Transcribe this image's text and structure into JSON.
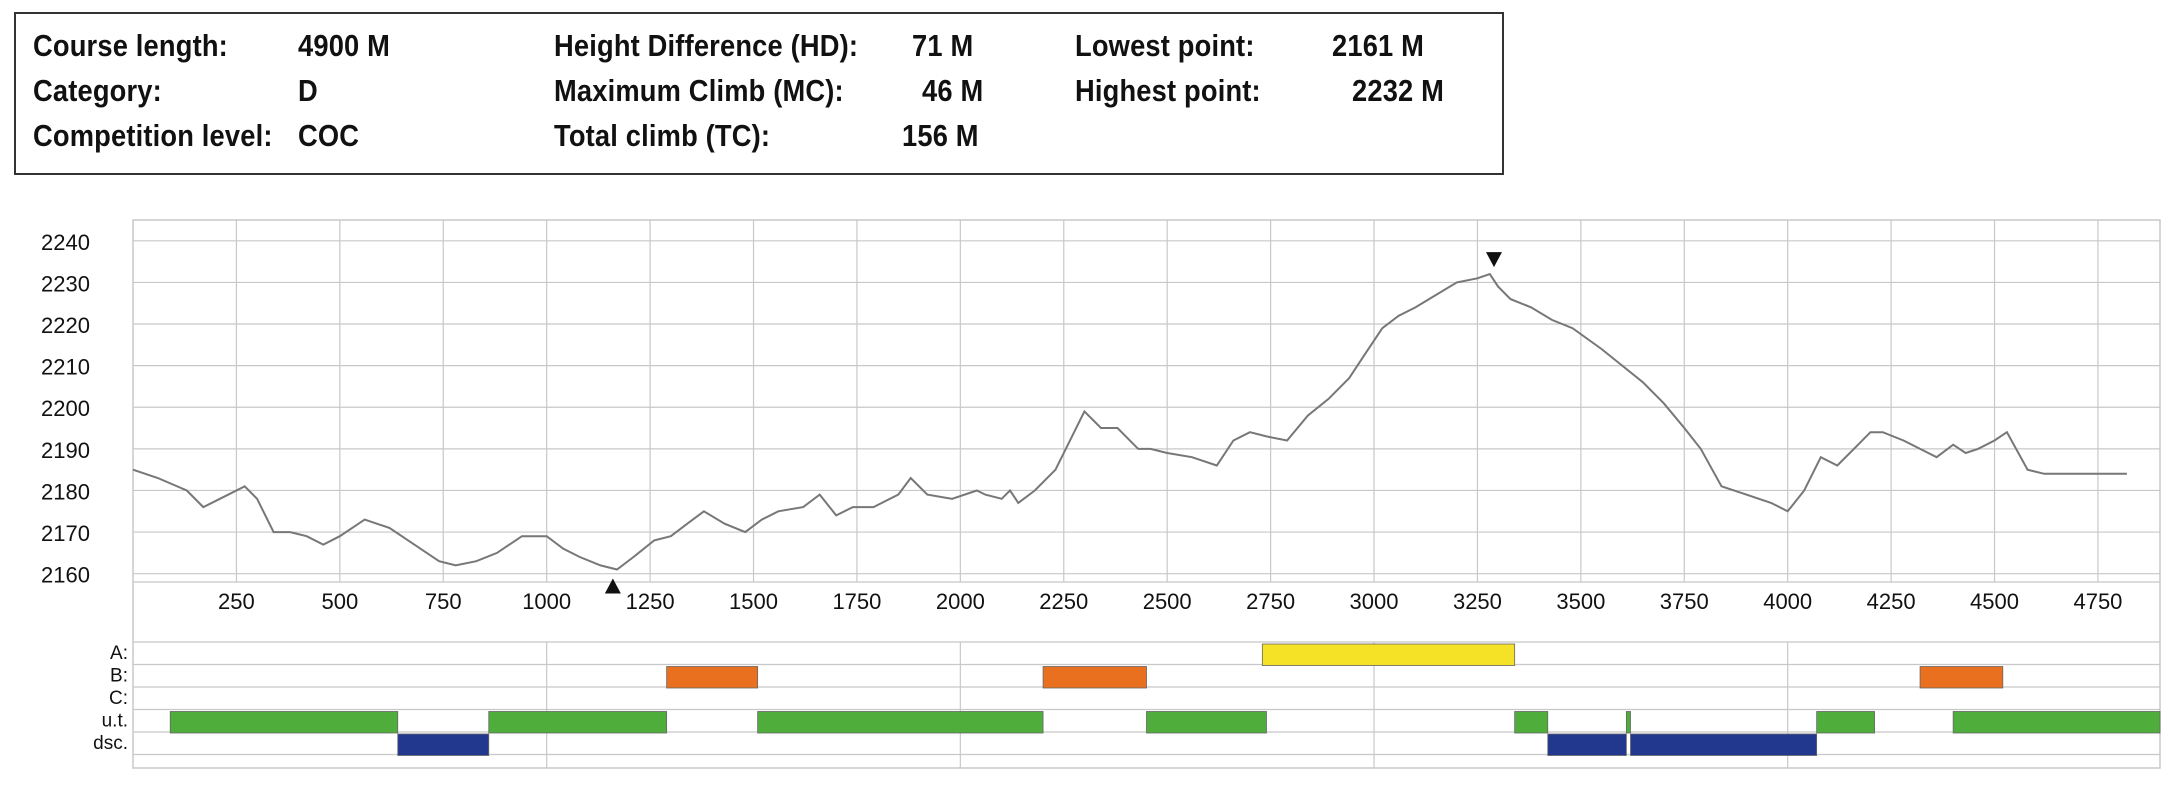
{
  "stats": {
    "course_length_label": "Course length:",
    "course_length_value": "4900 M",
    "category_label": "Category:",
    "category_value": "D",
    "competition_level_label": "Competition level:",
    "competition_level_value": "COC",
    "height_difference_label": "Height Difference (HD):",
    "height_difference_value": "71 M",
    "maximum_climb_label": "Maximum Climb (MC):",
    "maximum_climb_value": "46 M",
    "total_climb_label": "Total climb (TC):",
    "total_climb_value": "156 M",
    "lowest_point_label": "Lowest point:",
    "lowest_point_value": "2161 M",
    "highest_point_label": "Highest point:",
    "highest_point_value": "2232 M"
  },
  "colors": {
    "line": "#777777",
    "grid": "#c8c8c8",
    "A": "#f5e226",
    "B": "#e8701f",
    "C": "#888888",
    "ut": "#4fae3b",
    "dsc": "#22388f"
  },
  "chart_data": {
    "type": "line",
    "xlim": [
      0,
      4900
    ],
    "ylim": [
      2158,
      2245
    ],
    "x_ticks": [
      250,
      500,
      750,
      1000,
      1250,
      1500,
      1750,
      2000,
      2250,
      2500,
      2750,
      3000,
      3250,
      3500,
      3750,
      4000,
      4250,
      4500,
      4750
    ],
    "y_ticks": [
      2160,
      2170,
      2180,
      2190,
      2200,
      2210,
      2220,
      2230,
      2240
    ],
    "grid": true,
    "series": [
      {
        "x": [
          0,
          60,
          130,
          170,
          210,
          270,
          300,
          340,
          380,
          420,
          460,
          500,
          560,
          620,
          680,
          740,
          780,
          830,
          880,
          940,
          1000,
          1040,
          1080,
          1130,
          1170,
          1210,
          1260,
          1300,
          1340,
          1380,
          1430,
          1480,
          1520,
          1560,
          1620,
          1660,
          1700,
          1740,
          1790,
          1850,
          1880,
          1920,
          1980,
          2040,
          2060,
          2100,
          2120,
          2140,
          2180,
          2230,
          2260,
          2300,
          2340,
          2380,
          2430,
          2460,
          2500,
          2560,
          2620,
          2660,
          2700,
          2740,
          2790,
          2840,
          2890,
          2940,
          2980,
          3020,
          3060,
          3100,
          3150,
          3200,
          3250,
          3280,
          3300,
          3330,
          3380,
          3430,
          3480,
          3550,
          3600,
          3650,
          3700,
          3750,
          3790,
          3840,
          3900,
          3960,
          4000,
          4040,
          4080,
          4120,
          4160,
          4200,
          4230,
          4280,
          4320,
          4360,
          4400,
          4430,
          4460,
          4500,
          4530,
          4580,
          4620,
          4660,
          4700,
          4760,
          4820
        ],
        "y": [
          2185,
          2183,
          2180,
          2176,
          2178,
          2181,
          2178,
          2170,
          2170,
          2169,
          2167,
          2169,
          2173,
          2171,
          2167,
          2163,
          2162,
          2163,
          2165,
          2169,
          2169,
          2166,
          2164,
          2162,
          2161,
          2164,
          2168,
          2169,
          2172,
          2175,
          2172,
          2170,
          2173,
          2175,
          2176,
          2179,
          2174,
          2176,
          2176,
          2179,
          2183,
          2179,
          2178,
          2180,
          2179,
          2178,
          2180,
          2177,
          2180,
          2185,
          2191,
          2199,
          2195,
          2195,
          2190,
          2190,
          2189,
          2188,
          2186,
          2192,
          2194,
          2193,
          2192,
          2198,
          2202,
          2207,
          2213,
          2219,
          2222,
          2224,
          2227,
          2230,
          2231,
          2232,
          2229,
          2226,
          2224,
          2221,
          2219,
          2214,
          2210,
          2206,
          2201,
          2195,
          2190,
          2181,
          2179,
          2177,
          2175,
          2180,
          2188,
          2186,
          2190,
          2194,
          2194,
          2192,
          2190,
          2188,
          2191,
          2189,
          2190,
          2192,
          2194,
          2185,
          2184,
          2184,
          2184,
          2184,
          2184
        ]
      }
    ],
    "markers": [
      {
        "x": 1160,
        "y": 2161,
        "direction": "up"
      },
      {
        "x": 3290,
        "y": 2232,
        "direction": "down"
      }
    ]
  },
  "segment_rows": {
    "labels": [
      "A:",
      "B:",
      "C:",
      "u.t.",
      "dsc."
    ],
    "A": [
      [
        2730,
        3340
      ]
    ],
    "B": [
      [
        1290,
        1510
      ],
      [
        2200,
        2450
      ],
      [
        4320,
        4520
      ]
    ],
    "C": [],
    "ut": [
      [
        90,
        640
      ],
      [
        860,
        1290
      ],
      [
        1510,
        2200
      ],
      [
        2450,
        2740
      ],
      [
        3340,
        3420
      ],
      [
        3610,
        3620
      ],
      [
        4070,
        4210
      ],
      [
        4400,
        4900
      ]
    ],
    "dsc": [
      [
        640,
        860
      ],
      [
        3420,
        3610
      ],
      [
        3620,
        4070
      ]
    ]
  }
}
